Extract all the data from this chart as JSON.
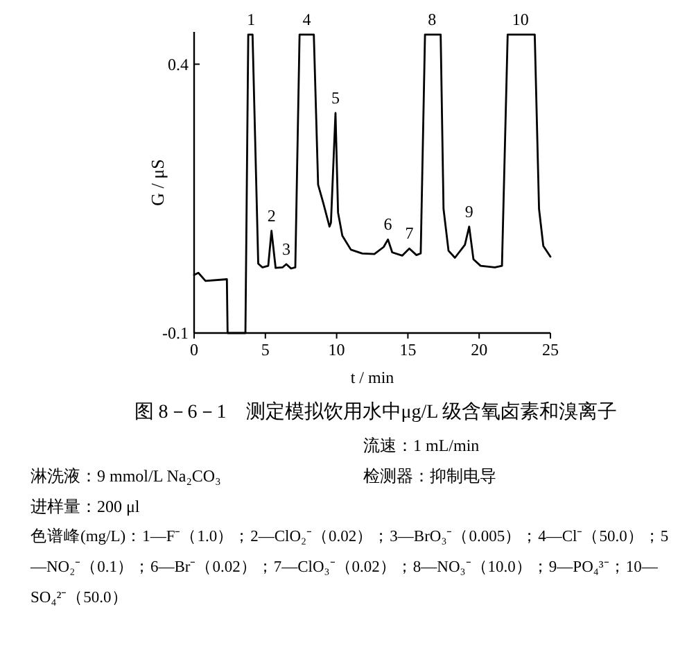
{
  "chart_data": {
    "type": "line",
    "title": "图 8－6－1　测定模拟饮用水中μg/L 级含氧卤素和溴离子",
    "xlabel": "t / min",
    "ylabel": "G / μS",
    "x": [
      0,
      0.3,
      0.8,
      2.3,
      2.35,
      3.6,
      3.8,
      4.1,
      4.5,
      4.8,
      5.2,
      5.43,
      5.72,
      6.2,
      6.47,
      6.8,
      7.1,
      7.4,
      8.4,
      8.7,
      9.07,
      9.5,
      9.6,
      9.92,
      10.1,
      10.4,
      11.0,
      11.8,
      12.65,
      13.3,
      13.6,
      13.9,
      14.6,
      15.1,
      15.6,
      15.9,
      16.2,
      17.3,
      17.5,
      17.85,
      18.3,
      19.0,
      19.3,
      19.6,
      20.1,
      21.1,
      21.6,
      22.0,
      23.9,
      24.2,
      24.5,
      25
    ],
    "series": [
      {
        "color": "#000000",
        "values": [
          0.008,
          0.012,
          -0.003,
          0,
          -0.1,
          -0.1,
          0.455,
          0.455,
          0.029,
          0.022,
          0.025,
          0.09,
          0.021,
          0.022,
          0.028,
          0.02,
          0.022,
          0.455,
          0.455,
          0.176,
          0.141,
          0.098,
          0.105,
          0.309,
          0.124,
          0.081,
          0.055,
          0.048,
          0.047,
          0.06,
          0.074,
          0.05,
          0.044,
          0.057,
          0.045,
          0.048,
          0.455,
          0.455,
          0.131,
          0.053,
          0.04,
          0.064,
          0.098,
          0.037,
          0.025,
          0.022,
          0.025,
          0.455,
          0.455,
          0.131,
          0.062,
          0.042
        ]
      }
    ],
    "xlim": [
      0,
      25
    ],
    "ylim": [
      -0.1,
      0.46
    ],
    "xticks": [
      0,
      5,
      10,
      15,
      20,
      25
    ],
    "yticks": [
      -0.1,
      0.4
    ],
    "grid": false,
    "marker": "none",
    "line_style": "solid",
    "annotations": [
      {
        "text": "1",
        "x": 4.0,
        "y": 0.455
      },
      {
        "text": "2",
        "x": 5.43,
        "y": 0.09
      },
      {
        "text": "3",
        "x": 6.47,
        "y": 0.028
      },
      {
        "text": "4",
        "x": 7.9,
        "y": 0.455
      },
      {
        "text": "5",
        "x": 9.92,
        "y": 0.309
      },
      {
        "text": "6",
        "x": 13.6,
        "y": 0.074
      },
      {
        "text": "7",
        "x": 15.1,
        "y": 0.057
      },
      {
        "text": "8",
        "x": 16.7,
        "y": 0.455
      },
      {
        "text": "9",
        "x": 19.3,
        "y": 0.098
      },
      {
        "text": "10",
        "x": 22.9,
        "y": 0.455
      },
      "流速：1 mL/min",
      "淋洗液：9 mmol/L Na₂CO₃",
      "检测器：抑制电导",
      "进样量：200 μl",
      "色谱峰(mg/L)：1—F⁻（1.0）；2—ClO₂⁻（0.02）；3—BrO₃⁻（0.005）；4—Cl⁻（50.0）；5—NO₂⁻（0.1）；6—Br⁻（0.02）；7—ClO₃⁻（0.02）；8—NO₃⁻（10.0）；9—PO₄³⁻；10—SO₄²⁻（50.0）"
    ]
  }
}
